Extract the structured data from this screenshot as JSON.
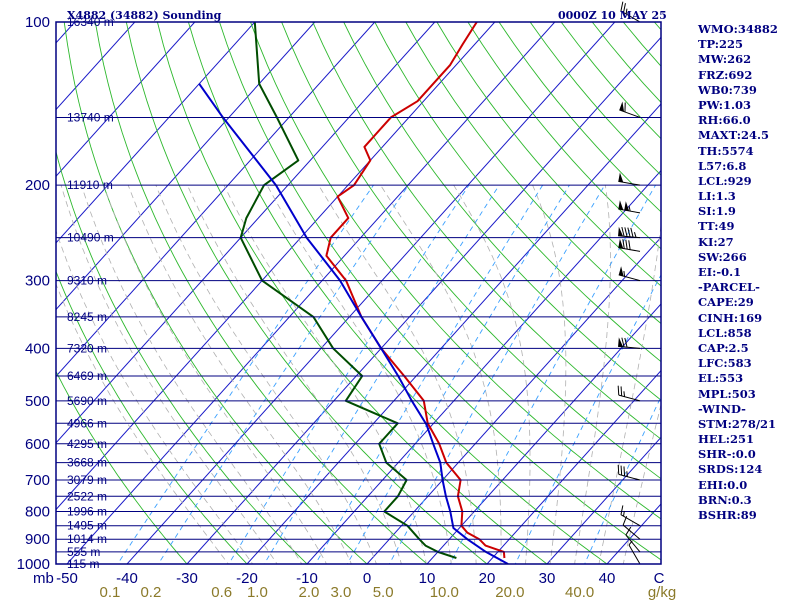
{
  "header": {
    "station": "X4882 (34882) Sounding",
    "valid_time": "0000Z 10 MAY 25"
  },
  "indices": [
    "WMO:34882",
    "TP:225",
    "MW:262",
    "FRZ:692",
    "WB0:739",
    "PW:1.03",
    "RH:66.0",
    "MAXT:24.5",
    "TH:5574",
    "L57:6.8",
    "LCL:929",
    "LI:1.3",
    "SI:1.9",
    "TT:49",
    "KI:27",
    "SW:266",
    "EI:-0.1",
    "-PARCEL-",
    "CAPE:29",
    "CINH:169",
    "LCL:858",
    "CAP:2.5",
    "LFC:583",
    "EL:553",
    "MPL:503",
    "-WIND-",
    "STM:278/21",
    "HEL:251",
    "SHR-:0.0",
    "SRDS:124",
    "EHI:0.0",
    "BRN:0.3",
    "BSHR:89"
  ],
  "colors": {
    "isobar": "#000080",
    "isotherm": "#1a1ac8",
    "dry_adiabat": "#2db82d",
    "moist_adiabat": "#b0b0b0",
    "mixing_ratio": "#3aa0ff",
    "temperature": "#cc0000",
    "dewpoint": "#004d00",
    "parcel": "#0000cc",
    "wind": "#000000"
  },
  "chart_data": {
    "type": "line",
    "title": "X4882 (34882) Sounding",
    "subtitle": "0000Z 10 MAY 25",
    "x_axis": {
      "prefix": "mb",
      "ticks": [
        -50,
        -40,
        -30,
        -20,
        -10,
        0,
        10,
        20,
        30,
        40
      ],
      "tick_labels": [
        "-50",
        "-40",
        "-30",
        "-20",
        "-10",
        "0",
        "10",
        "20",
        "30",
        "40"
      ],
      "unit": "C",
      "range": [
        -50,
        50
      ]
    },
    "y_axis": {
      "scale": "log",
      "range": [
        1000,
        100
      ],
      "ticks": [
        100,
        200,
        300,
        400,
        500,
        600,
        700,
        800,
        900,
        1000
      ],
      "tick_labels": [
        "100",
        "200",
        "300",
        "400",
        "500",
        "600",
        "700",
        "800",
        "900",
        "1000"
      ]
    },
    "height_levels": [
      {
        "p": 100,
        "label": "16340 m"
      },
      {
        "p": 150,
        "label": "13740 m"
      },
      {
        "p": 200,
        "label": "11910 m"
      },
      {
        "p": 250,
        "label": "10490 m"
      },
      {
        "p": 300,
        "label": "9310 m"
      },
      {
        "p": 350,
        "label": "8245 m"
      },
      {
        "p": 400,
        "label": "7320 m"
      },
      {
        "p": 450,
        "label": "6469 m"
      },
      {
        "p": 500,
        "label": "5690 m"
      },
      {
        "p": 550,
        "label": "4966 m"
      },
      {
        "p": 600,
        "label": "4295 m"
      },
      {
        "p": 650,
        "label": "3668 m"
      },
      {
        "p": 700,
        "label": "3079 m"
      },
      {
        "p": 750,
        "label": "2522 m"
      },
      {
        "p": 800,
        "label": "1996 m"
      },
      {
        "p": 850,
        "label": "1495 m"
      },
      {
        "p": 900,
        "label": "1014 m"
      },
      {
        "p": 950,
        "label": "555 m"
      },
      {
        "p": 1000,
        "label": "115 m"
      }
    ],
    "mixing_ratio_lines": [
      0.1,
      0.2,
      0.6,
      1.0,
      2.0,
      3.0,
      5.0,
      10.0,
      20.0,
      40.0
    ],
    "mixing_ratio_labels": [
      "0.1",
      "0.2",
      "0.6",
      "1.0",
      "2.0",
      "3.0",
      "5.0",
      "10.0",
      "20.0",
      "40.0"
    ],
    "mixing_ratio_unit": "g/kg",
    "series": [
      {
        "key": "temperature",
        "points": [
          [
            975,
            22
          ],
          [
            950,
            21
          ],
          [
            925,
            17
          ],
          [
            900,
            15
          ],
          [
            875,
            12
          ],
          [
            850,
            10
          ],
          [
            800,
            8
          ],
          [
            750,
            5
          ],
          [
            700,
            3
          ],
          [
            650,
            -2
          ],
          [
            600,
            -6
          ],
          [
            550,
            -11
          ],
          [
            500,
            -15
          ],
          [
            450,
            -22
          ],
          [
            400,
            -30
          ],
          [
            350,
            -38
          ],
          [
            300,
            -46
          ],
          [
            270,
            -53
          ],
          [
            250,
            -55
          ],
          [
            230,
            -55
          ],
          [
            210,
            -60
          ],
          [
            200,
            -59
          ],
          [
            180,
            -60
          ],
          [
            170,
            -63
          ],
          [
            150,
            -63
          ],
          [
            140,
            -61
          ],
          [
            120,
            -61
          ],
          [
            110,
            -62
          ],
          [
            100,
            -63
          ]
        ]
      },
      {
        "key": "dewpoint",
        "points": [
          [
            975,
            14
          ],
          [
            950,
            10
          ],
          [
            925,
            7
          ],
          [
            900,
            5
          ],
          [
            850,
            1
          ],
          [
            800,
            -5
          ],
          [
            750,
            -5
          ],
          [
            700,
            -6
          ],
          [
            650,
            -12
          ],
          [
            600,
            -16
          ],
          [
            550,
            -16
          ],
          [
            500,
            -28
          ],
          [
            450,
            -29
          ],
          [
            400,
            -38
          ],
          [
            350,
            -46
          ],
          [
            300,
            -60
          ],
          [
            250,
            -70
          ],
          [
            230,
            -72
          ],
          [
            200,
            -74
          ],
          [
            180,
            -72
          ],
          [
            150,
            -82
          ],
          [
            130,
            -90
          ],
          [
            100,
            -100
          ]
        ]
      },
      {
        "key": "parcel",
        "points": [
          [
            1000,
            23.5
          ],
          [
            950,
            18
          ],
          [
            900,
            13
          ],
          [
            858,
            9
          ],
          [
            800,
            6
          ],
          [
            750,
            3
          ],
          [
            700,
            0
          ],
          [
            650,
            -3
          ],
          [
            600,
            -7
          ],
          [
            553,
            -11
          ],
          [
            500,
            -17
          ],
          [
            450,
            -23
          ],
          [
            400,
            -30
          ],
          [
            350,
            -38
          ],
          [
            300,
            -47
          ],
          [
            250,
            -59
          ],
          [
            200,
            -72
          ],
          [
            150,
            -91
          ],
          [
            130,
            -100
          ]
        ]
      }
    ],
    "wind_barbs": [
      {
        "p": 100,
        "dir": 300,
        "spd": 25
      },
      {
        "p": 150,
        "dir": 290,
        "spd": 60
      },
      {
        "p": 200,
        "dir": 280,
        "spd": 50
      },
      {
        "p": 225,
        "dir": 280,
        "spd": 105
      },
      {
        "p": 250,
        "dir": 275,
        "spd": 95
      },
      {
        "p": 265,
        "dir": 280,
        "spd": 80
      },
      {
        "p": 300,
        "dir": 285,
        "spd": 55
      },
      {
        "p": 400,
        "dir": 275,
        "spd": 70
      },
      {
        "p": 500,
        "dir": 285,
        "spd": 25
      },
      {
        "p": 700,
        "dir": 285,
        "spd": 35
      },
      {
        "p": 850,
        "dir": 300,
        "spd": 15
      },
      {
        "p": 900,
        "dir": 310,
        "spd": 10
      },
      {
        "p": 950,
        "dir": 320,
        "spd": 10
      },
      {
        "p": 1000,
        "dir": 330,
        "spd": 5
      }
    ]
  }
}
